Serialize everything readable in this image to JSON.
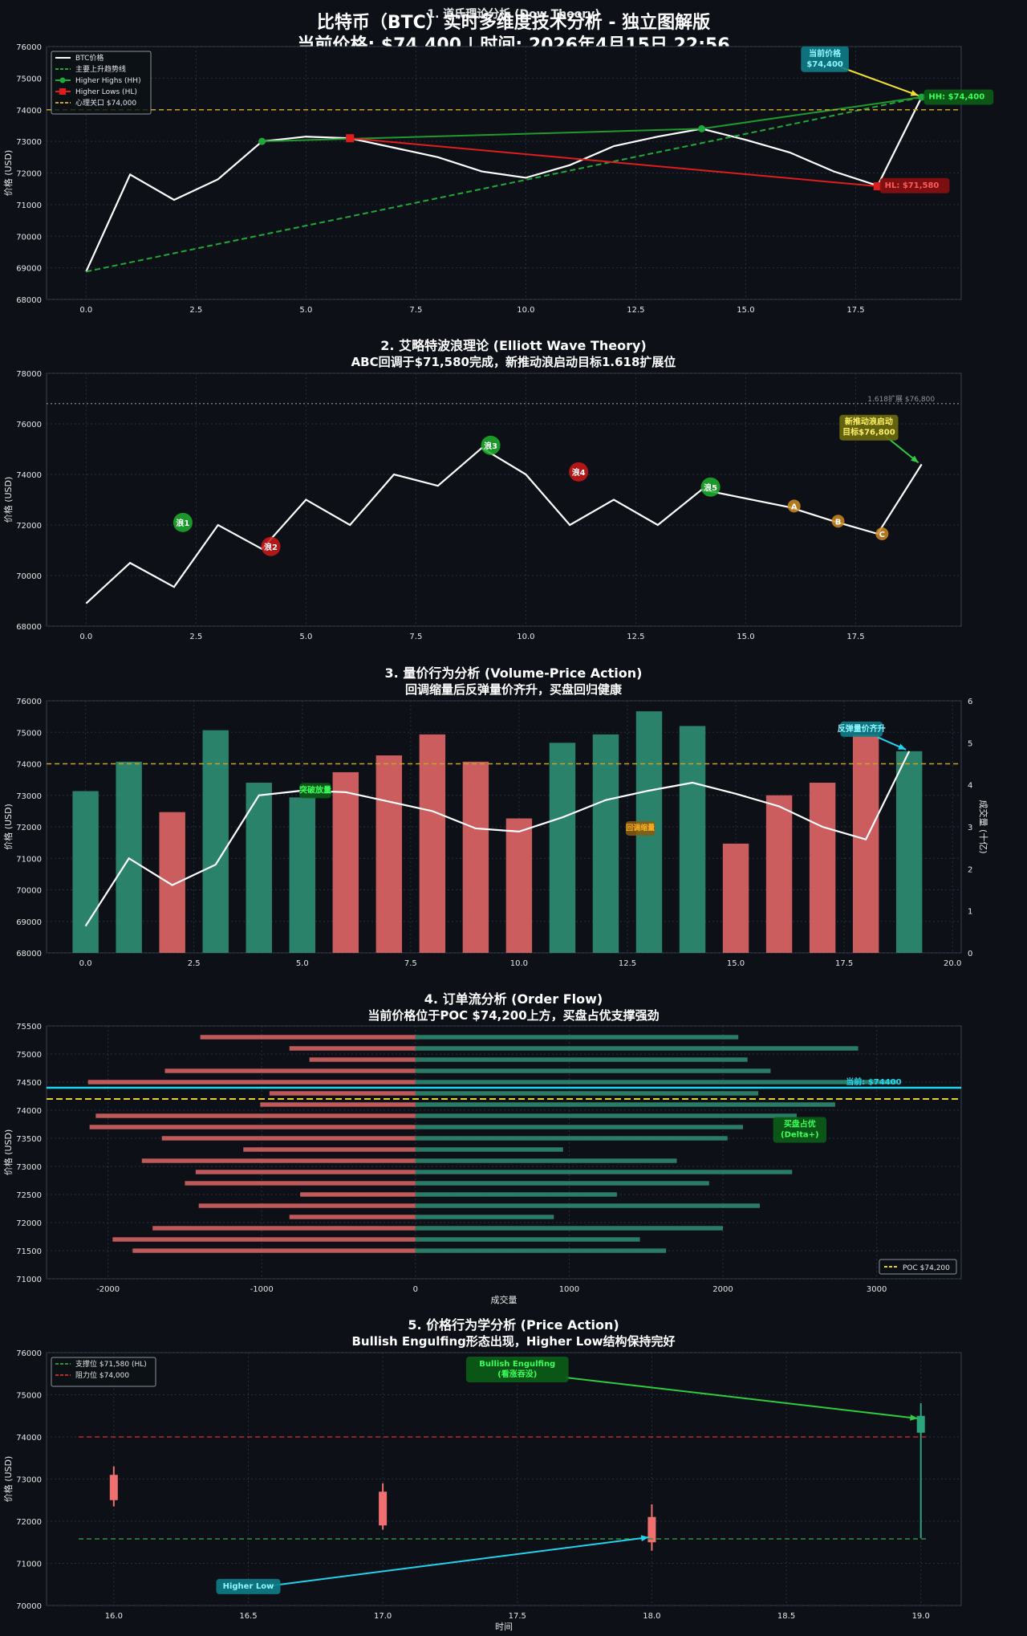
{
  "header": {
    "title": "比特币（BTC）实时多维度技术分析 - 独立图解版",
    "subtitle": "当前价格: $74,400 | 时间: 2026年4月15日 22:56"
  },
  "colors": {
    "bg": "#0d1117",
    "plot_bg": "#0d1117",
    "grid": "#263040",
    "axis": "#8b949e",
    "text": "#e6e6e6",
    "price": "#ffffff",
    "green": "#22c55e",
    "red": "#ef4444",
    "bar_green": "#2f8f73",
    "bar_red": "#e06666",
    "orange": "#e0a030",
    "cyan": "#22d3ee",
    "yellow": "#e2d32a"
  },
  "chart_data": [
    {
      "id": "dow",
      "type": "line",
      "title": "1. 道氏理论分析 (Dow Theory)",
      "subtitle": "",
      "xlabel": "",
      "ylabel": "价格 (USD)",
      "xlim": [
        -0.9,
        19.9
      ],
      "ylim": [
        68000,
        76000
      ],
      "xticks": [
        0.0,
        2.5,
        5.0,
        7.5,
        10.0,
        12.5,
        15.0,
        17.5
      ],
      "xtick_labels": [
        "0.0",
        "2.5",
        "5.0",
        "7.5",
        "10.0",
        "12.5",
        "15.0",
        "17.5"
      ],
      "yticks": [
        68000,
        69000,
        70000,
        71000,
        72000,
        73000,
        74000,
        75000,
        76000
      ],
      "ytick_labels": [
        "68000",
        "69000",
        "70000",
        "71000",
        "72000",
        "73000",
        "74000",
        "75000",
        "76000"
      ],
      "series": [
        {
          "name": "BTC价格",
          "style": "price",
          "x": [
            0,
            1,
            2,
            3,
            4,
            5,
            6,
            7,
            8,
            9,
            10,
            11,
            12,
            13,
            14,
            15,
            16,
            17,
            18,
            19
          ],
          "y": [
            68880,
            71950,
            71150,
            71800,
            73000,
            73150,
            73100,
            72800,
            72500,
            72050,
            71850,
            72250,
            72850,
            73150,
            73400,
            73050,
            72650,
            72050,
            71600,
            74400
          ]
        },
        {
          "name": "主要上升趋势线",
          "style": "trend",
          "x": [
            0,
            19
          ],
          "y": [
            68880,
            74400
          ]
        },
        {
          "name": "Higher Highs (HH)",
          "style": "hh",
          "x": [
            4,
            14,
            19
          ],
          "y": [
            73000,
            73400,
            74400
          ]
        },
        {
          "name": "Higher Lows (HL)",
          "style": "hl",
          "x": [
            6,
            18
          ],
          "y": [
            73100,
            71580
          ]
        },
        {
          "name": "心理关口 $74,000",
          "style": "level",
          "y": 74000
        }
      ],
      "legend": "top-left",
      "annotations": [
        {
          "text": "当前价格\n$74,400",
          "x": 16.8,
          "y": 75600,
          "kind": "cyan-box",
          "arrow_to": [
            19,
            74400
          ]
        },
        {
          "text": "HH: $74,400",
          "x": 19.05,
          "y": 74400,
          "kind": "green-box"
        },
        {
          "text": "HL: $71,580",
          "x": 18.05,
          "y": 71600,
          "kind": "red-box"
        }
      ]
    },
    {
      "id": "elliott",
      "type": "line",
      "title": "2. 艾略特波浪理论 (Elliott Wave Theory)",
      "subtitle": "ABC回调于$71,580完成，新推动浪启动目标1.618扩展位",
      "xlabel": "",
      "ylabel": "价格 (USD)",
      "xlim": [
        -0.9,
        19.9
      ],
      "ylim": [
        68000,
        78000
      ],
      "xticks": [
        0.0,
        2.5,
        5.0,
        7.5,
        10.0,
        12.5,
        15.0,
        17.5
      ],
      "xtick_labels": [
        "0.0",
        "2.5",
        "5.0",
        "7.5",
        "10.0",
        "12.5",
        "15.0",
        "17.5"
      ],
      "yticks": [
        68000,
        70000,
        72000,
        74000,
        76000,
        78000
      ],
      "ytick_labels": [
        "68000",
        "70000",
        "72000",
        "74000",
        "76000",
        "78000"
      ],
      "series": [
        {
          "name": "BTC价格",
          "style": "price",
          "x": [
            0,
            1,
            2,
            3,
            4,
            5,
            6,
            7,
            8,
            9,
            10,
            11,
            12,
            13,
            14,
            15,
            16,
            17,
            18,
            19
          ],
          "y": [
            68900,
            70500,
            69550,
            72000,
            71050,
            73000,
            72000,
            74000,
            73550,
            75050,
            74000,
            72000,
            73000,
            72000,
            73400,
            73050,
            72700,
            72150,
            71650,
            74400
          ]
        },
        {
          "name": "1.618扩展",
          "style": "level-gray",
          "y": 76800
        }
      ],
      "wave_markers": [
        {
          "label": "浪1",
          "x": 2.2,
          "y": 72100,
          "color": "green"
        },
        {
          "label": "浪2",
          "x": 4.2,
          "y": 71150,
          "color": "red"
        },
        {
          "label": "浪3",
          "x": 9.2,
          "y": 75150,
          "color": "green"
        },
        {
          "label": "浪4",
          "x": 11.2,
          "y": 74100,
          "color": "red"
        },
        {
          "label": "浪5",
          "x": 14.2,
          "y": 73500,
          "color": "green"
        },
        {
          "label": "A",
          "x": 16.1,
          "y": 72750,
          "color": "orange"
        },
        {
          "label": "B",
          "x": 17.1,
          "y": 72150,
          "color": "orange"
        },
        {
          "label": "C",
          "x": 18.1,
          "y": 71650,
          "color": "orange"
        }
      ],
      "annotations": [
        {
          "text": "1.618扩展 $76,800",
          "x": 19.3,
          "y": 76800,
          "kind": "gray-text"
        },
        {
          "text": "新推动浪启动\n目标$76,800",
          "x": 17.8,
          "y": 75850,
          "kind": "yellow-box",
          "arrow_to": [
            19,
            74400
          ]
        }
      ]
    },
    {
      "id": "volume",
      "type": "bar",
      "title": "3. 量价行为分析 (Volume-Price Action)",
      "subtitle": "回调缩量后反弹量价齐升，买盘回归健康",
      "xlabel": "",
      "ylabel": "价格 (USD)",
      "y2label": "成交量 (十亿)",
      "xlim": [
        -0.9,
        20.2
      ],
      "ylim": [
        68000,
        76000
      ],
      "y2lim": [
        0,
        6
      ],
      "xticks": [
        0.0,
        2.5,
        5.0,
        7.5,
        10.0,
        12.5,
        15.0,
        17.5,
        20.0
      ],
      "xtick_labels": [
        "0.0",
        "2.5",
        "5.0",
        "7.5",
        "10.0",
        "12.5",
        "15.0",
        "17.5",
        "20.0"
      ],
      "yticks": [
        68000,
        69000,
        70000,
        71000,
        72000,
        73000,
        74000,
        75000,
        76000
      ],
      "ytick_labels": [
        "68000",
        "69000",
        "70000",
        "71000",
        "72000",
        "73000",
        "74000",
        "75000",
        "76000"
      ],
      "y2ticks": [
        0,
        1,
        2,
        3,
        4,
        5,
        6
      ],
      "y2tick_labels": [
        "0",
        "1",
        "2",
        "3",
        "4",
        "5",
        "6"
      ],
      "volume": {
        "x": [
          0,
          1,
          2,
          3,
          4,
          5,
          6,
          7,
          8,
          9,
          10,
          11,
          12,
          13,
          14,
          15,
          16,
          17,
          18,
          19
        ],
        "values": [
          3.85,
          4.55,
          3.35,
          5.3,
          4.05,
          3.7,
          4.3,
          4.7,
          5.2,
          4.55,
          3.2,
          5.0,
          5.2,
          5.75,
          5.4,
          2.6,
          3.75,
          4.05,
          5.2,
          4.8
        ],
        "colors": [
          "green",
          "green",
          "red",
          "green",
          "green",
          "green",
          "red",
          "red",
          "red",
          "red",
          "red",
          "green",
          "green",
          "green",
          "green",
          "red",
          "red",
          "red",
          "red",
          "green"
        ]
      },
      "series": [
        {
          "name": "BTC价格",
          "style": "price",
          "x": [
            0,
            1,
            2,
            3,
            4,
            5,
            6,
            7,
            8,
            9,
            10,
            11,
            12,
            13,
            14,
            15,
            16,
            17,
            18,
            19
          ],
          "y": [
            68850,
            71000,
            70150,
            70800,
            73000,
            73150,
            73100,
            72800,
            72500,
            71950,
            71850,
            72300,
            72850,
            73150,
            73400,
            73050,
            72650,
            72000,
            71600,
            74400
          ]
        },
        {
          "name": "心理关口",
          "style": "level",
          "y": 74000
        }
      ],
      "annotations": [
        {
          "text": "突破放量",
          "x": 5.3,
          "y": 73150,
          "kind": "green-box"
        },
        {
          "text": "回调缩量",
          "x": 12.8,
          "y": 71950,
          "kind": "orange-box"
        },
        {
          "text": "反弹量价齐升",
          "x": 17.9,
          "y": 75100,
          "kind": "cyan-box",
          "arrow_to": [
            19,
            74400
          ]
        }
      ]
    },
    {
      "id": "orderflow",
      "type": "bar",
      "orientation": "horizontal",
      "title": "4. 订单流分析 (Order Flow)",
      "subtitle": "当前价格位于POC $74,200上方，买盘占优支撑强劲",
      "xlabel": "成交量",
      "ylabel": "价格 (USD)",
      "xlim": [
        -2400,
        3550
      ],
      "ylim": [
        71000,
        75500
      ],
      "xticks": [
        -2000,
        -1000,
        0,
        1000,
        2000,
        3000
      ],
      "xtick_labels": [
        "-2000",
        "-1000",
        "0",
        "1000",
        "2000",
        "3000"
      ],
      "yticks": [
        71000,
        71500,
        72000,
        72500,
        73000,
        73500,
        74000,
        74500,
        75000,
        75500
      ],
      "ytick_labels": [
        "71000",
        "71500",
        "72000",
        "72500",
        "73000",
        "73500",
        "74000",
        "74500",
        "75000",
        "75500"
      ],
      "levels": {
        "price": [
          71500,
          71700,
          71900,
          72100,
          72300,
          72500,
          72700,
          72900,
          73100,
          73300,
          73500,
          73700,
          73900,
          74100,
          74300,
          74500,
          74700,
          74900,
          75100,
          75300
        ],
        "buy": [
          1630,
          1460,
          2000,
          900,
          2240,
          1310,
          1910,
          2450,
          1700,
          960,
          2030,
          2130,
          2480,
          2730,
          2230,
          3130,
          2310,
          2160,
          2880,
          2100
        ],
        "sell": [
          -1840,
          -1970,
          -1710,
          -820,
          -1410,
          -750,
          -1500,
          -1430,
          -1780,
          -1120,
          -1650,
          -2120,
          -2080,
          -1010,
          -950,
          -2130,
          -1630,
          -690,
          -820,
          -1400
        ]
      },
      "series": [
        {
          "name": "当前价格",
          "style": "cyan-level",
          "y": 74400
        },
        {
          "name": "POC $74,200",
          "style": "poc",
          "y": 74200
        }
      ],
      "legend": "bottom-right",
      "annotations": [
        {
          "text": "当前: $74400",
          "x": 2800,
          "y": 74400,
          "kind": "cyan-text"
        },
        {
          "text": "买盘占优\n(Delta+)",
          "x": 2500,
          "y": 73650,
          "kind": "green-box"
        }
      ]
    },
    {
      "id": "priceaction",
      "type": "candlestick",
      "title": "5. 价格行为学分析 (Price Action)",
      "subtitle": "Bullish Engulfing形态出现，Higher Low结构保持完好",
      "xlabel": "时间",
      "ylabel": "价格 (USD)",
      "xlim": [
        15.75,
        19.15
      ],
      "ylim": [
        70000,
        76000
      ],
      "xticks": [
        16.0,
        16.5,
        17.0,
        17.5,
        18.0,
        18.5,
        19.0
      ],
      "xtick_labels": [
        "16.0",
        "16.5",
        "17.0",
        "17.5",
        "18.0",
        "18.5",
        "19.0"
      ],
      "yticks": [
        70000,
        71000,
        72000,
        73000,
        74000,
        75000,
        76000
      ],
      "ytick_labels": [
        "70000",
        "71000",
        "72000",
        "73000",
        "74000",
        "75000",
        "76000"
      ],
      "candles": [
        {
          "x": 16,
          "open": 73100,
          "high": 73300,
          "low": 72350,
          "close": 72500,
          "color": "red"
        },
        {
          "x": 17,
          "open": 72700,
          "high": 72900,
          "low": 71800,
          "close": 71900,
          "color": "red"
        },
        {
          "x": 18,
          "open": 72100,
          "high": 72400,
          "low": 71300,
          "close": 71500,
          "color": "red"
        },
        {
          "x": 19,
          "open": 74100,
          "high": 74800,
          "low": 71600,
          "close": 74500,
          "color": "green"
        }
      ],
      "series": [
        {
          "name": "支撑位 $71,580 (HL)",
          "style": "support",
          "y": 71580
        },
        {
          "name": "阻力位 $74,000",
          "style": "resistance",
          "y": 74000
        }
      ],
      "legend": "top-left",
      "annotations": [
        {
          "text": "Bullish Engulfing\n(看涨吞没)",
          "x": 17.5,
          "y": 75600,
          "kind": "green-box",
          "arrow_to": [
            19,
            74400
          ]
        },
        {
          "text": "Higher Low",
          "x": 16.5,
          "y": 70450,
          "kind": "cyan-box",
          "arrow_to": [
            18,
            71580
          ]
        }
      ]
    }
  ]
}
